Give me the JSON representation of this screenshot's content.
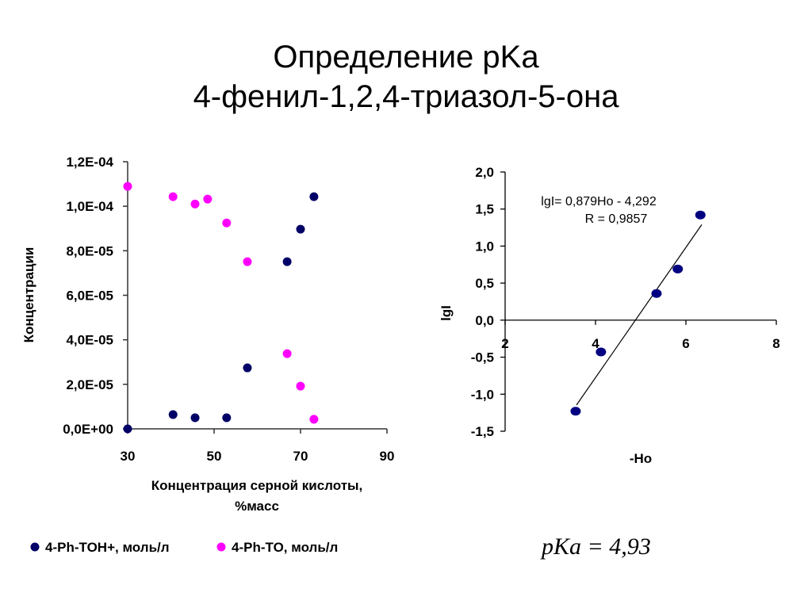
{
  "slide": {
    "title_line1": "Определение pKa",
    "title_line2": "4-фенил-1,2,4-триазол-5-она",
    "pka_formula": "pKa = 4,93"
  },
  "chart_data": [
    {
      "type": "scatter",
      "xlabel_line1": "Концентрация серной кислоты,",
      "xlabel_line2": "%масс",
      "ylabel": "Концентрации",
      "xlim": [
        30,
        90
      ],
      "ylim": [
        0,
        0.00012
      ],
      "x_ticks": [
        "30",
        "50",
        "70",
        "90"
      ],
      "x_tick_values": [
        30,
        50,
        70,
        90
      ],
      "y_ticks": [
        "0,0E+00",
        "2,0E-05",
        "4,0E-05",
        "6,0E-05",
        "8,0E-05",
        "1,0E-04",
        "1,2E-04"
      ],
      "y_tick_values": [
        0,
        2e-05,
        4e-05,
        6e-05,
        8e-05,
        0.0001,
        0.00012
      ],
      "grid": false,
      "legend_placement": "bottom",
      "series": [
        {
          "name": "4-Ph-TOH+, моль/л",
          "color": "#000066",
          "x": [
            30,
            40.5,
            45.6,
            52.9,
            57.7,
            66.9,
            70,
            73.1
          ],
          "y": [
            0,
            6.4e-06,
            5e-06,
            5e-06,
            2.74e-05,
            7.51e-05,
            8.97e-05,
            0.0001043
          ]
        },
        {
          "name": "4-Ph-TO, моль/л",
          "color": "#FF00FF",
          "x": [
            30,
            40.5,
            45.6,
            48.5,
            52.9,
            57.7,
            66.9,
            70,
            73.1
          ],
          "y": [
            0.0001089,
            0.0001043,
            0.000101,
            0.0001032,
            9.25e-05,
            7.51e-05,
            3.38e-05,
            1.92e-05,
            4.3e-06
          ]
        }
      ]
    },
    {
      "type": "scatter",
      "xlabel": "-Ho",
      "ylabel": "lgI",
      "xlim": [
        2,
        8
      ],
      "ylim": [
        -1.5,
        2.0
      ],
      "x_ticks": [
        "2",
        "4",
        "6",
        "8"
      ],
      "x_tick_values": [
        2,
        4,
        6,
        8
      ],
      "y_ticks": [
        "-1,5",
        "-1,0",
        "-0,5",
        "0,0",
        "0,5",
        "1,0",
        "1,5",
        "2,0"
      ],
      "y_tick_values": [
        -1.5,
        -1.0,
        -0.5,
        0,
        0.5,
        1.0,
        1.5,
        2.0
      ],
      "grid": false,
      "series": [
        {
          "color": "#000080",
          "x": [
            3.56,
            4.12,
            5.35,
            5.82,
            6.32
          ],
          "y": [
            -1.23,
            -0.43,
            0.36,
            0.69,
            1.42
          ]
        }
      ],
      "trendline": {
        "slope": 0.879,
        "intercept": -4.292,
        "x_range": [
          3.58,
          6.35
        ],
        "color": "#000000"
      },
      "annotation_line1": "lgI= 0,879Ho - 4,292",
      "annotation_line2": "R = 0,9857"
    }
  ]
}
